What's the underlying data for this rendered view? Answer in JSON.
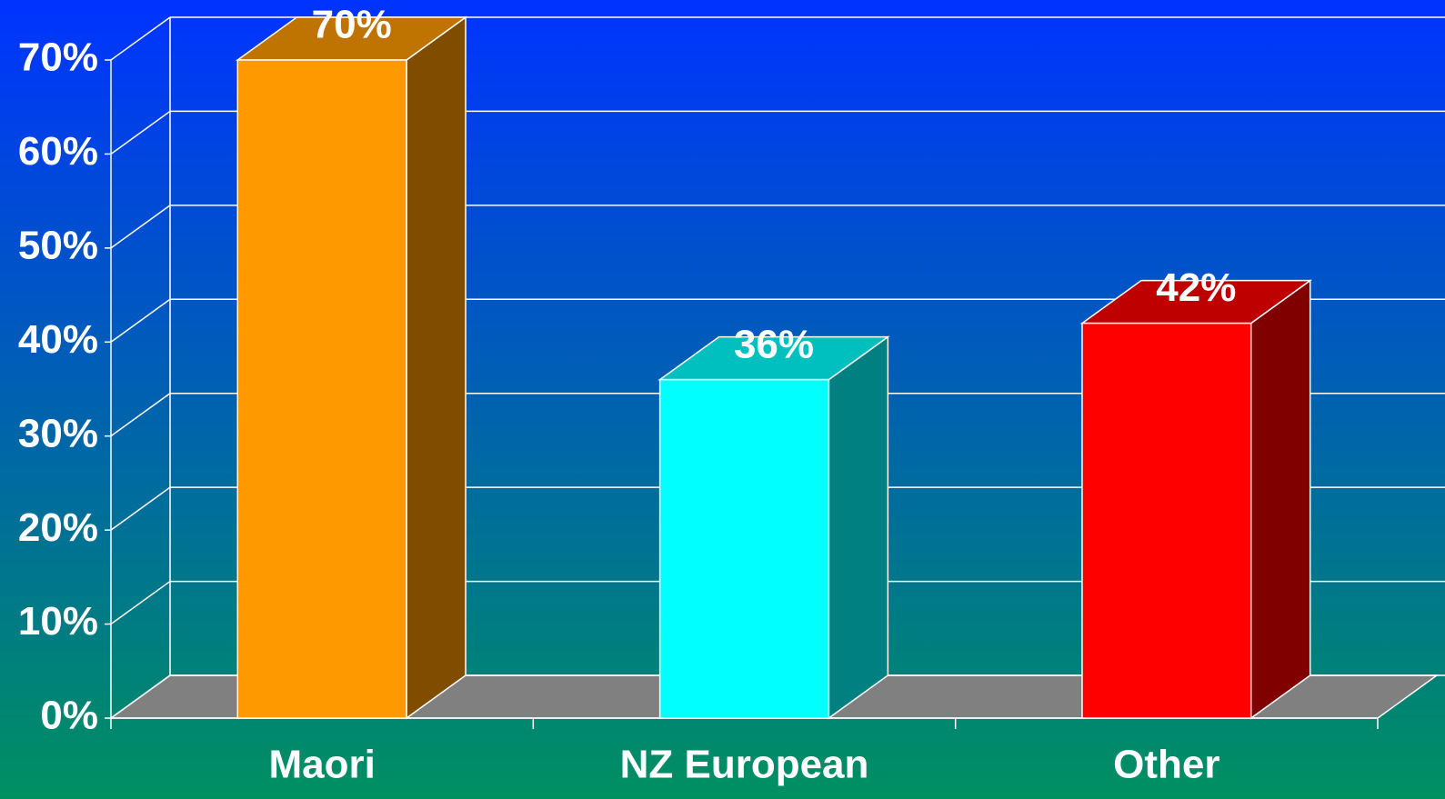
{
  "chart_data": {
    "type": "bar3d",
    "categories": [
      "Maori",
      "NZ European",
      "Other"
    ],
    "values": [
      70,
      36,
      42
    ],
    "value_labels": [
      "70%",
      "36%",
      "42%"
    ],
    "colors": [
      "#ff9900",
      "#00ffff",
      "#ff0000"
    ],
    "ylim": [
      0,
      70
    ],
    "yticks": [
      {
        "value": 0,
        "label": "0%"
      },
      {
        "value": 10,
        "label": "10%"
      },
      {
        "value": 20,
        "label": "20%"
      },
      {
        "value": 30,
        "label": "30%"
      },
      {
        "value": 40,
        "label": "40%"
      },
      {
        "value": 50,
        "label": "50%"
      },
      {
        "value": 60,
        "label": "60%"
      },
      {
        "value": 70,
        "label": "70%"
      }
    ],
    "grid": true
  }
}
